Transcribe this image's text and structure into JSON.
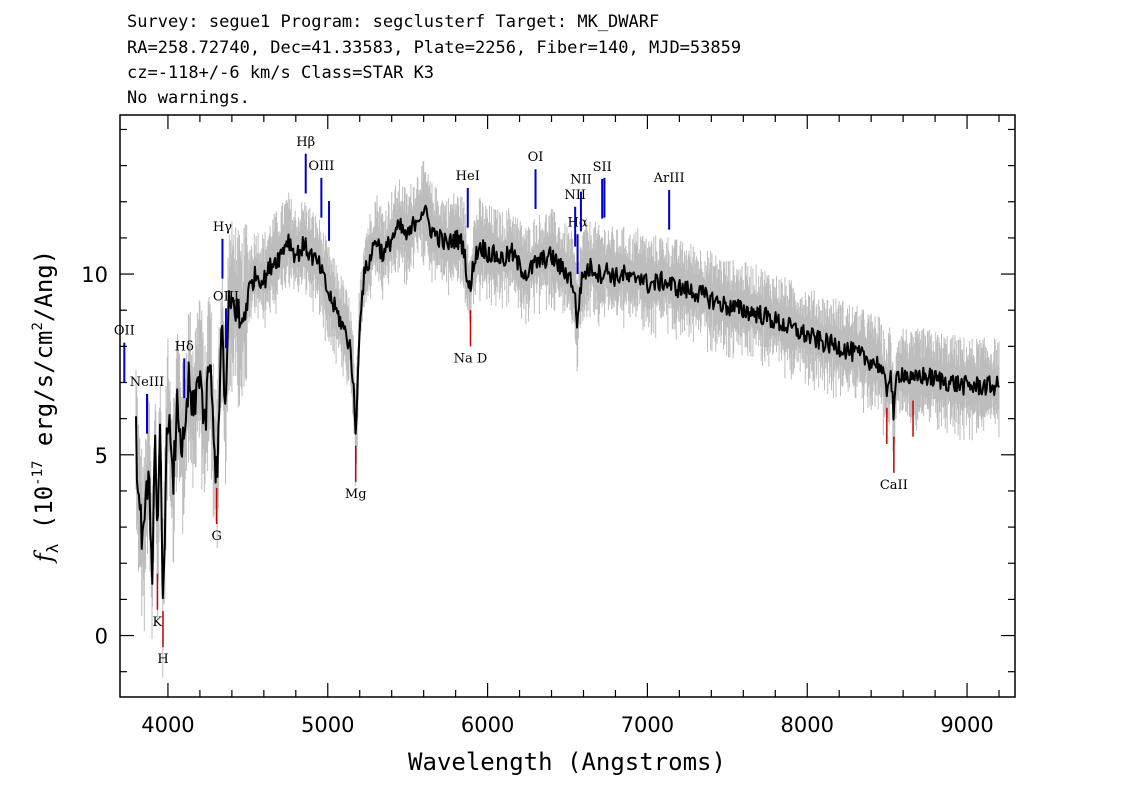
{
  "header": {
    "line1": "Survey: segue1 Program: segclusterf Target: MK_DWARF",
    "line2": "RA=258.72740, Dec=41.33583, Plate=2256, Fiber=140, MJD=53859",
    "line3": "cz=-118+/-6 km/s Class=STAR K3",
    "line4": "No warnings."
  },
  "chart_data": {
    "type": "line",
    "xlabel": "Wavelength (Angstroms)",
    "ylabel": "f_λ (10^-17 erg/s/cm^2/Ang)",
    "xlim": [
      3700,
      9300
    ],
    "ylim": [
      -1.7,
      14.4
    ],
    "xticks": [
      4000,
      5000,
      6000,
      7000,
      8000,
      9000
    ],
    "yticks": [
      0,
      5,
      10
    ],
    "grid": false,
    "series": [
      {
        "role": "spectrum",
        "color": "#000000",
        "x": [
          3800,
          3820,
          3850,
          3880,
          3900,
          3920,
          3935,
          3950,
          3968,
          3985,
          4000,
          4030,
          4060,
          4080,
          4101,
          4130,
          4160,
          4200,
          4230,
          4260,
          4290,
          4308,
          4320,
          4340,
          4360,
          4380,
          4420,
          4460,
          4500,
          4550,
          4600,
          4650,
          4700,
          4750,
          4800,
          4850,
          4900,
          4950,
          5000,
          5050,
          5100,
          5140,
          5160,
          5172,
          5184,
          5200,
          5230,
          5270,
          5300,
          5350,
          5400,
          5450,
          5500,
          5550,
          5600,
          5650,
          5700,
          5750,
          5800,
          5850,
          5875,
          5893,
          5910,
          5950,
          6000,
          6050,
          6100,
          6150,
          6200,
          6250,
          6300,
          6350,
          6400,
          6450,
          6500,
          6530,
          6550,
          6563,
          6575,
          6600,
          6650,
          6700,
          6750,
          6800,
          6850,
          6900,
          6950,
          7000,
          7100,
          7200,
          7300,
          7400,
          7500,
          7600,
          7700,
          7800,
          7900,
          8000,
          8100,
          8200,
          8300,
          8400,
          8450,
          8498,
          8520,
          8542,
          8560,
          8600,
          8662,
          8700,
          8800,
          8900,
          9000,
          9100,
          9200
        ],
        "y": [
          5.5,
          3.5,
          2.5,
          5.0,
          1.5,
          5.2,
          2.0,
          6.0,
          1.0,
          4.0,
          6.5,
          4.0,
          6.5,
          5.5,
          5.0,
          7.0,
          6.0,
          7.5,
          5.5,
          7.8,
          5.0,
          4.5,
          6.5,
          8.5,
          6.0,
          9.0,
          9.2,
          8.5,
          9.5,
          10.0,
          9.8,
          10.3,
          10.5,
          11.0,
          10.5,
          10.8,
          10.5,
          10.2,
          9.5,
          9.0,
          8.5,
          8.0,
          7.0,
          5.5,
          6.5,
          8.8,
          10.0,
          10.5,
          11.0,
          10.5,
          11.0,
          11.3,
          11.0,
          11.5,
          11.8,
          11.2,
          11.0,
          10.8,
          11.0,
          10.8,
          9.8,
          9.5,
          10.3,
          10.8,
          10.6,
          10.5,
          10.4,
          10.6,
          10.2,
          10.0,
          10.3,
          10.4,
          10.5,
          10.2,
          10.0,
          9.8,
          9.2,
          8.5,
          9.5,
          10.0,
          10.2,
          10.0,
          10.1,
          9.9,
          10.0,
          9.8,
          10.0,
          9.7,
          9.8,
          9.6,
          9.5,
          9.3,
          9.1,
          9.0,
          8.9,
          8.7,
          8.5,
          8.3,
          8.1,
          8.0,
          7.8,
          7.6,
          7.5,
          6.8,
          7.4,
          6.0,
          7.2,
          7.3,
          7.0,
          7.2,
          7.1,
          7.0,
          6.9,
          6.9,
          6.9
        ]
      }
    ],
    "lines": [
      {
        "label": "OII",
        "wave": 3727,
        "kind": "emission",
        "color": "#0000cc"
      },
      {
        "label": "NeIII",
        "wave": 3869,
        "kind": "emission",
        "color": "#0000cc"
      },
      {
        "label": "Hδ",
        "wave": 4102,
        "kind": "emission",
        "color": "#0000cc"
      },
      {
        "label": "Hγ",
        "wave": 4341,
        "kind": "emission",
        "color": "#0000cc"
      },
      {
        "label": "OIII",
        "wave": 4363,
        "kind": "emission",
        "color": "#0000cc"
      },
      {
        "label": "Hβ",
        "wave": 4862,
        "kind": "emission",
        "color": "#0000cc"
      },
      {
        "label": "OIII",
        "wave": 4960,
        "kind": "emission",
        "color": "#0000cc"
      },
      {
        "label": "",
        "wave": 5008,
        "kind": "emission",
        "color": "#0000cc"
      },
      {
        "label": "HeI",
        "wave": 5876,
        "kind": "emission",
        "color": "#0000cc"
      },
      {
        "label": "OI",
        "wave": 6300,
        "kind": "emission",
        "color": "#0000cc"
      },
      {
        "label": "NII",
        "wave": 6548,
        "kind": "emission",
        "color": "#0000cc"
      },
      {
        "label": "Hα",
        "wave": 6563,
        "kind": "emission",
        "color": "#0000cc"
      },
      {
        "label": "NII",
        "wave": 6584,
        "kind": "emission",
        "color": "#0000cc"
      },
      {
        "label": "SII",
        "wave": 6717,
        "kind": "emission",
        "color": "#0000cc"
      },
      {
        "label": "",
        "wave": 6731,
        "kind": "emission",
        "color": "#0000cc"
      },
      {
        "label": "ArIII",
        "wave": 7136,
        "kind": "emission",
        "color": "#0000cc"
      },
      {
        "label": "K",
        "wave": 3934,
        "kind": "absorption",
        "color": "#cc0000"
      },
      {
        "label": "H",
        "wave": 3969,
        "kind": "absorption",
        "color": "#cc0000"
      },
      {
        "label": "G",
        "wave": 4305,
        "kind": "absorption",
        "color": "#cc0000"
      },
      {
        "label": "Mg",
        "wave": 5175,
        "kind": "absorption",
        "color": "#cc0000"
      },
      {
        "label": "Na D",
        "wave": 5893,
        "kind": "absorption",
        "color": "#cc0000"
      },
      {
        "label": "",
        "wave": 8498,
        "kind": "absorption",
        "color": "#cc0000"
      },
      {
        "label": "CaII",
        "wave": 8542,
        "kind": "absorption",
        "color": "#cc0000"
      },
      {
        "label": "",
        "wave": 8662,
        "kind": "absorption",
        "color": "#cc0000"
      }
    ]
  }
}
